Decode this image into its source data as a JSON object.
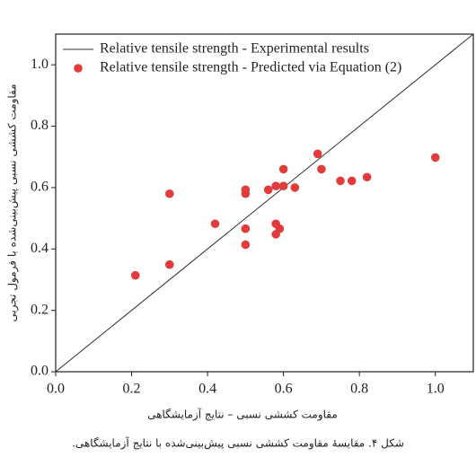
{
  "chart_data": {
    "type": "scatter",
    "x_label": "مقاومت کششی نسبی – نتایج آزمایشگاهی",
    "y_label": "مقاومت کششی نسبی پیش‌بینی‌شده با فرمول تجربی",
    "xlim": [
      0,
      1.1
    ],
    "ylim": [
      0,
      1.1
    ],
    "xticks": [
      {
        "value": 0,
        "label": "0.0"
      },
      {
        "value": 0.2,
        "label": "0.2"
      },
      {
        "value": 0.4,
        "label": "0.4"
      },
      {
        "value": 0.6,
        "label": "0.6"
      },
      {
        "value": 0.8,
        "label": "0.8"
      },
      {
        "value": 1,
        "label": "1.0"
      }
    ],
    "yticks": [
      {
        "value": 0,
        "label": "0.0"
      },
      {
        "value": 0.2,
        "label": "0.2"
      },
      {
        "value": 0.4,
        "label": "0.4"
      },
      {
        "value": 0.6,
        "label": "0.6"
      },
      {
        "value": 0.8,
        "label": "0.8"
      },
      {
        "value": 1,
        "label": "1.0"
      }
    ],
    "legend": "upper-left",
    "series": [
      {
        "name": "Relative tensile strength - Experimental results",
        "type": "line",
        "color": "#333333",
        "x": [
          0,
          1.1
        ],
        "values": [
          0,
          1.1
        ]
      },
      {
        "name": "Relative tensile strength - Predicted via Equation (2)",
        "type": "scatter",
        "color": "#e23b3b",
        "x": [
          0.21,
          0.3,
          0.3,
          0.42,
          0.5,
          0.5,
          0.5,
          0.5,
          0.56,
          0.58,
          0.58,
          0.58,
          0.59,
          0.6,
          0.6,
          0.63,
          0.69,
          0.7,
          0.75,
          0.78,
          0.82,
          1.0
        ],
        "values": [
          0.314,
          0.58,
          0.349,
          0.482,
          0.593,
          0.58,
          0.466,
          0.414,
          0.593,
          0.605,
          0.482,
          0.448,
          0.466,
          0.66,
          0.605,
          0.6,
          0.71,
          0.66,
          0.622,
          0.622,
          0.634,
          0.698
        ]
      }
    ]
  },
  "caption": "شکل ۴. مقایسهٔ مقاومت کششی نسبی پیش‌بینی‌شده با نتایج آزمایشگاهی."
}
